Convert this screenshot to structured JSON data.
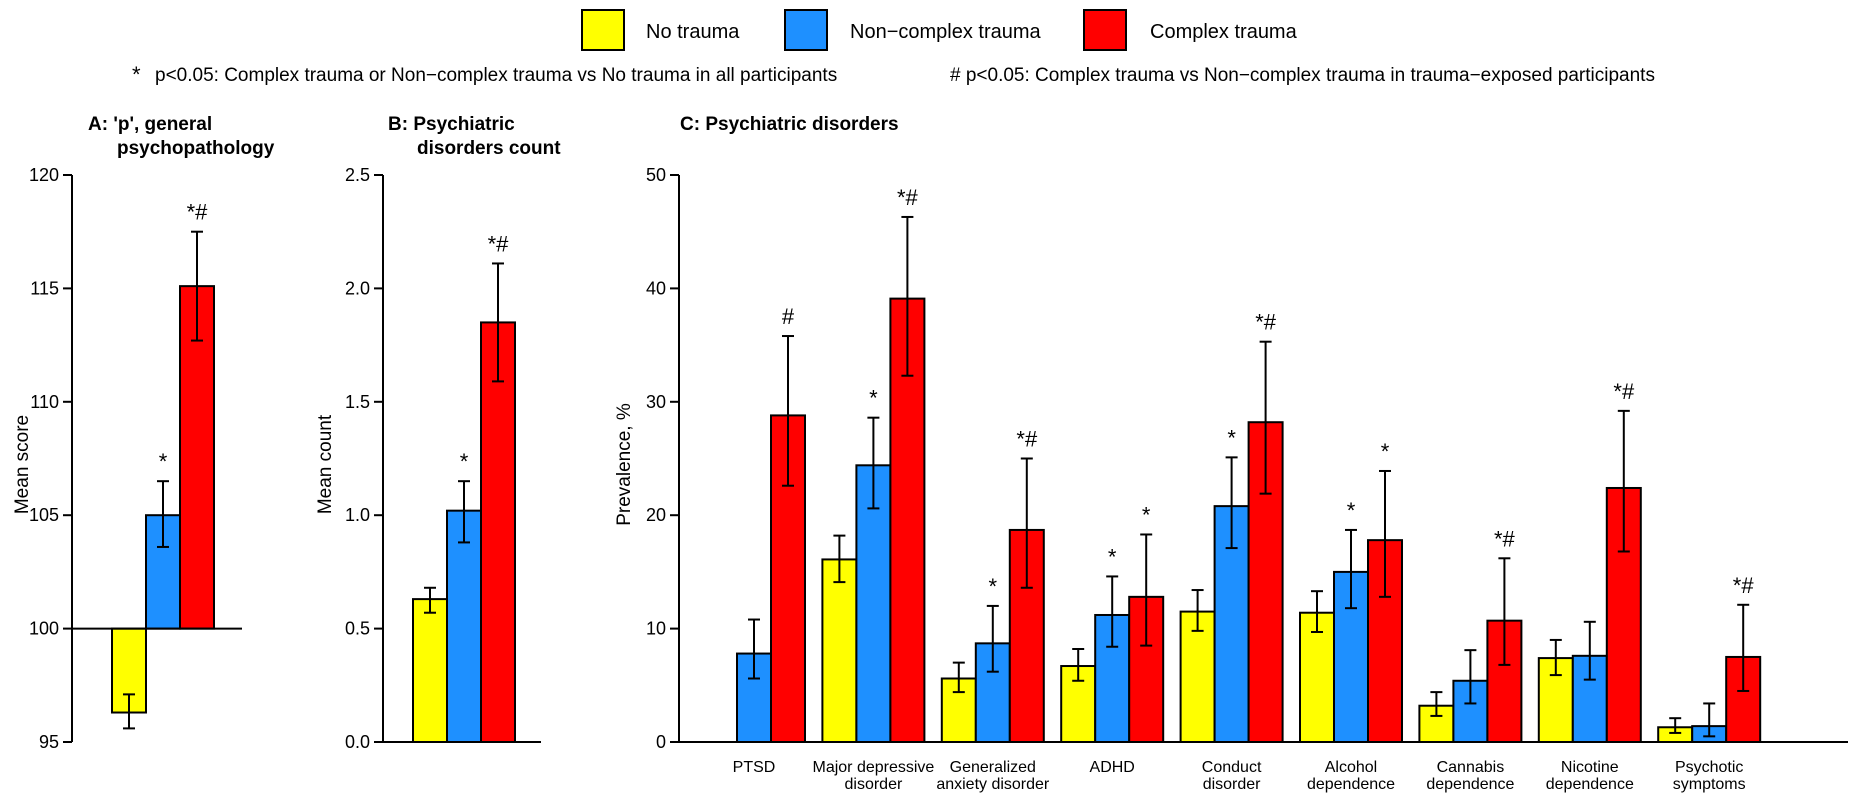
{
  "colors": {
    "No trauma": "#ffff00",
    "Non−complex trauma": "#1e90ff",
    "Complex trauma": "#ff0000"
  },
  "legend": {
    "items": [
      "No trauma",
      "Non−complex trauma",
      "Complex trauma"
    ]
  },
  "notes": {
    "star": "p<0.05: Complex trauma or Non−complex trauma vs No trauma in all participants",
    "hash": "# p<0.05: Complex trauma vs Non−complex trauma in trauma−exposed participants"
  },
  "chart_data": [
    {
      "id": "A",
      "type": "bar",
      "title": "A: 'p', general psychopathology",
      "ylabel": "Mean score",
      "ylim": [
        95,
        120
      ],
      "yticks": [
        95,
        100,
        105,
        110,
        115,
        120
      ],
      "baseline": 100,
      "categories": [
        ""
      ],
      "series": [
        {
          "name": "No trauma",
          "values": [
            96.3
          ],
          "err_low": [
            95.6
          ],
          "err_high": [
            97.1
          ],
          "sig": [
            ""
          ]
        },
        {
          "name": "Non−complex trauma",
          "values": [
            105.0
          ],
          "err_low": [
            103.6
          ],
          "err_high": [
            106.5
          ],
          "sig": [
            "*"
          ]
        },
        {
          "name": "Complex trauma",
          "values": [
            115.1
          ],
          "err_low": [
            112.7
          ],
          "err_high": [
            117.5
          ],
          "sig": [
            "*#"
          ]
        }
      ]
    },
    {
      "id": "B",
      "type": "bar",
      "title": "B: Psychiatric disorders count",
      "ylabel": "Mean count",
      "ylim": [
        0,
        2.5
      ],
      "yticks": [
        "0.0",
        "0.5",
        "1.0",
        "1.5",
        "2.0",
        "2.5"
      ],
      "baseline": 0,
      "categories": [
        ""
      ],
      "series": [
        {
          "name": "No trauma",
          "values": [
            0.63
          ],
          "err_low": [
            0.57
          ],
          "err_high": [
            0.68
          ],
          "sig": [
            ""
          ]
        },
        {
          "name": "Non−complex trauma",
          "values": [
            1.02
          ],
          "err_low": [
            0.88
          ],
          "err_high": [
            1.15
          ],
          "sig": [
            "*"
          ]
        },
        {
          "name": "Complex trauma",
          "values": [
            1.85
          ],
          "err_low": [
            1.59
          ],
          "err_high": [
            2.11
          ],
          "sig": [
            "*#"
          ]
        }
      ]
    },
    {
      "id": "C",
      "type": "bar",
      "title": "C: Psychiatric disorders",
      "ylabel": "Prevalence, %",
      "ylim": [
        0,
        50
      ],
      "yticks": [
        0,
        10,
        20,
        30,
        40,
        50
      ],
      "baseline": 0,
      "categories": [
        "PTSD",
        "Major depressive disorder",
        "Generalized anxiety disorder",
        "ADHD",
        "Conduct disorder",
        "Alcohol dependence",
        "Cannabis dependence",
        "Nicotine dependence",
        "Psychotic symptoms"
      ],
      "category_lines": [
        [
          "PTSD"
        ],
        [
          "Major depressive",
          "disorder"
        ],
        [
          "Generalized",
          "anxiety disorder"
        ],
        [
          "ADHD"
        ],
        [
          "Conduct",
          "disorder"
        ],
        [
          "Alcohol",
          "dependence"
        ],
        [
          "Cannabis",
          "dependence"
        ],
        [
          "Nicotine",
          "dependence"
        ],
        [
          "Psychotic",
          "symptoms"
        ]
      ],
      "series": [
        {
          "name": "No trauma",
          "values": [
            null,
            16.1,
            5.6,
            6.7,
            11.5,
            11.4,
            3.2,
            7.4,
            1.3
          ],
          "err_low": [
            null,
            14.1,
            4.4,
            5.4,
            9.8,
            9.7,
            2.3,
            5.9,
            0.8
          ],
          "err_high": [
            null,
            18.2,
            7.0,
            8.2,
            13.4,
            13.3,
            4.4,
            9.0,
            2.1
          ],
          "sig": [
            "",
            "",
            "",
            "",
            "",
            "",
            "",
            "",
            ""
          ]
        },
        {
          "name": "Non−complex trauma",
          "values": [
            7.8,
            24.4,
            8.7,
            11.2,
            20.8,
            15.0,
            5.4,
            7.6,
            1.4
          ],
          "err_low": [
            5.6,
            20.6,
            6.2,
            8.4,
            17.1,
            11.8,
            3.4,
            5.5,
            0.5
          ],
          "err_high": [
            10.8,
            28.6,
            12.0,
            14.6,
            25.1,
            18.7,
            8.1,
            10.6,
            3.4
          ],
          "sig": [
            "",
            "*",
            "*",
            "*",
            "*",
            "*",
            "",
            "",
            ""
          ]
        },
        {
          "name": "Complex trauma",
          "values": [
            28.8,
            39.1,
            18.7,
            12.8,
            28.2,
            17.8,
            10.7,
            22.4,
            7.5
          ],
          "err_low": [
            22.6,
            32.3,
            13.6,
            8.5,
            21.9,
            12.8,
            6.8,
            16.8,
            4.5
          ],
          "err_high": [
            35.8,
            46.3,
            25.0,
            18.3,
            35.3,
            23.9,
            16.2,
            29.2,
            12.1
          ],
          "sig": [
            "#",
            "*#",
            "*#",
            "*",
            "*#",
            "*",
            "*#",
            "*#",
            "*#"
          ]
        }
      ]
    }
  ]
}
